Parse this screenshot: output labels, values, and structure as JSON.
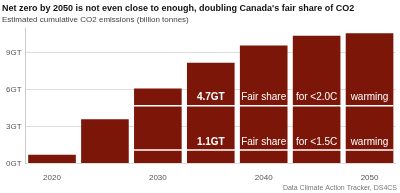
{
  "chart_data": {
    "type": "bar",
    "title": "Net zero by 2050 is not even close to enough, doubling Canada's fair share of CO2",
    "subtitle": "Estimated cumulative CO2 emissions (billion tonnes)",
    "categories": [
      "2020",
      null,
      "2030",
      null,
      "2040",
      null,
      "2050"
    ],
    "values": [
      0.7,
      3.6,
      6.1,
      8.2,
      9.6,
      10.4,
      10.6
    ],
    "color": "#7b1609",
    "ylim": [
      0,
      11
    ],
    "yticks": [
      {
        "value": 0,
        "label": "0GT"
      },
      {
        "value": 3,
        "label": "3GT"
      },
      {
        "value": 6,
        "label": "6GT"
      },
      {
        "value": 9,
        "label": "9GT"
      }
    ],
    "grid": true,
    "annotations": [
      {
        "value": 4.7,
        "label": "4.7GT",
        "texts": [
          "Fair share",
          "for <2.0C",
          "warming"
        ]
      },
      {
        "value": 1.1,
        "label": "1.1GT",
        "texts": [
          "Fair share",
          "for <1.5C",
          "warming"
        ]
      }
    ],
    "source": "Data Climate Action Tracker, DS4CS"
  }
}
